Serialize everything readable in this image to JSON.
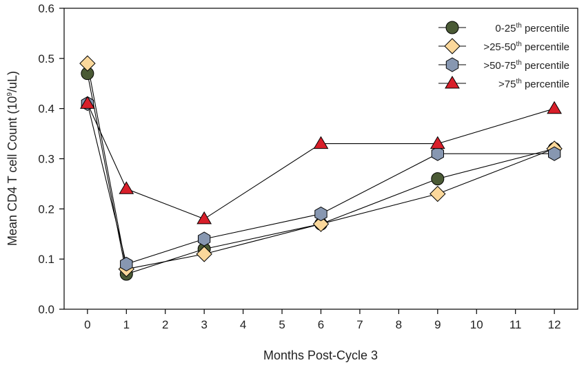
{
  "chart_data": {
    "type": "line",
    "title": "",
    "xlabel": "Months Post-Cycle 3",
    "ylabel_parts": [
      "Mean CD4 T cell Count (10",
      "9",
      "/uL)"
    ],
    "xlim": [
      -0.6,
      12.6
    ],
    "ylim": [
      0,
      0.6
    ],
    "x_ticks": [
      0,
      1,
      2,
      3,
      4,
      5,
      6,
      7,
      8,
      9,
      10,
      11,
      12
    ],
    "y_ticks": [
      0.0,
      0.1,
      0.2,
      0.3,
      0.4,
      0.5,
      0.6
    ],
    "y_tick_labels": [
      "0.0",
      "0.1",
      "0.2",
      "0.3",
      "0.4",
      "0.5",
      "0.6"
    ],
    "grid": false,
    "legend_position": "top-right",
    "x": [
      0,
      1,
      3,
      6,
      9,
      12
    ],
    "series": [
      {
        "name_parts": [
          "0-25",
          "th",
          " percentile"
        ],
        "marker": "circle",
        "color": "#4a5a35",
        "values": [
          0.47,
          0.07,
          0.12,
          0.17,
          0.26,
          0.32
        ]
      },
      {
        "name_parts": [
          ">25-50",
          "th",
          " percentile"
        ],
        "marker": "diamond",
        "color": "#fbd89b",
        "values": [
          0.49,
          0.08,
          0.11,
          0.17,
          0.23,
          0.32
        ]
      },
      {
        "name_parts": [
          ">50-75",
          "th",
          " percentile"
        ],
        "marker": "hexagon",
        "color": "#8797b1",
        "values": [
          0.41,
          0.09,
          0.14,
          0.19,
          0.31,
          0.31
        ]
      },
      {
        "name_parts": [
          ">75",
          "th",
          " percentile"
        ],
        "marker": "triangle",
        "color": "#d81f2a",
        "values": [
          0.41,
          0.24,
          0.18,
          0.33,
          0.33,
          0.4
        ]
      }
    ]
  }
}
